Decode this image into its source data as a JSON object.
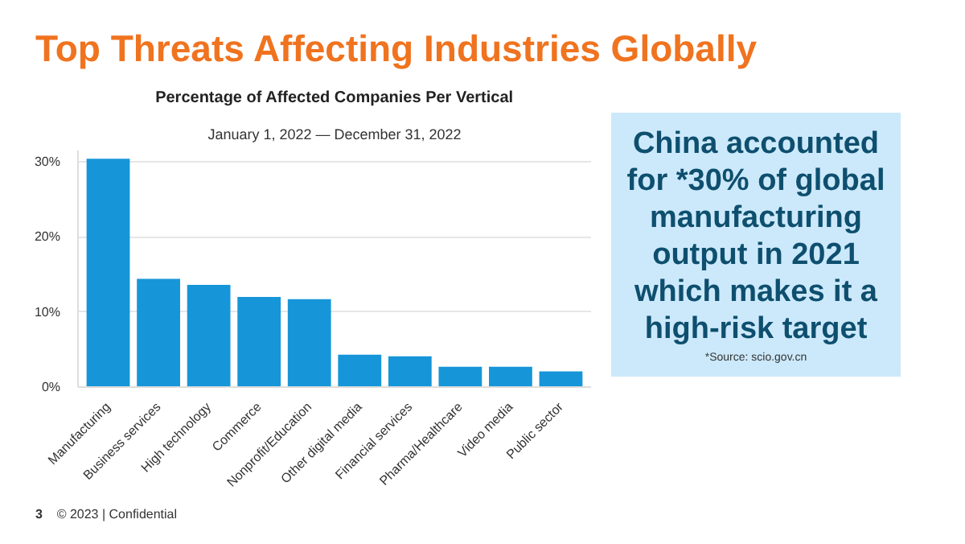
{
  "chart_data": {
    "type": "bar",
    "title": "Percentage of Affected Companies Per Vertical",
    "subtitle": "January 1, 2022 — December 31, 2022",
    "categories": [
      "Manufacturing",
      "Business services",
      "High technology",
      "Commerce",
      "Nonprofit/Education",
      "Other digital media",
      "Financial services",
      "Pharma/Healthcare",
      "Video media",
      "Public sector"
    ],
    "values": [
      30.4,
      14.4,
      13.6,
      12.0,
      11.7,
      4.3,
      4.1,
      2.7,
      2.7,
      2.1
    ],
    "color": "#1696d8",
    "ylim": [
      0,
      31.5
    ],
    "yticks": [
      {
        "value": 0,
        "label": "0%"
      },
      {
        "value": 10,
        "label": "10%"
      },
      {
        "value": 20,
        "label": "20%"
      },
      {
        "value": 30,
        "label": "30%"
      }
    ],
    "grid": "y",
    "annotations": [
      "Top Threats Affecting Industries Globally",
      "China accounted for *30% of global manufacturing output in 2021 which makes it a high-risk target",
      "*Source: scio.gov.cn",
      "3",
      "© 2023 | Confidential"
    ]
  }
}
